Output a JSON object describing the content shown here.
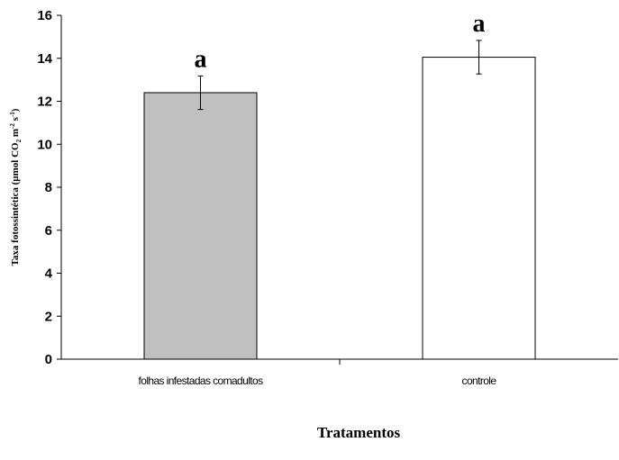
{
  "chart_data": {
    "type": "bar",
    "categories": [
      "folhas infestadas comadultos",
      "controle"
    ],
    "values": [
      12.4,
      14.05
    ],
    "error": [
      0.78,
      0.78
    ],
    "significance_labels": [
      "a",
      "a"
    ],
    "bar_colors": [
      "#c0c0c0",
      "#ffffff"
    ],
    "yticks": [
      0,
      2,
      4,
      6,
      8,
      10,
      12,
      14,
      16
    ],
    "ylim": [
      0,
      16
    ],
    "xlabel": "Tratamentos",
    "ylabel": {
      "main": "Taxa fotossintética (µmol CO",
      "sub2": "2",
      "m": " m",
      "sup_neg2": "-2",
      "s": " s",
      "sup_neg1": "-1",
      "close": ")"
    },
    "grid": false,
    "legend": "none"
  }
}
